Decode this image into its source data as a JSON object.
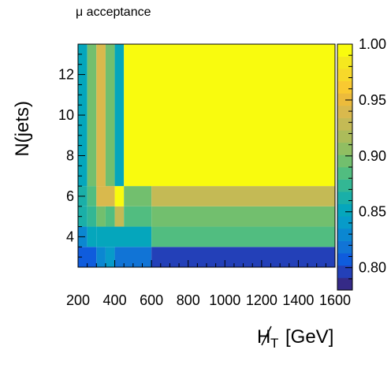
{
  "chart_data": {
    "type": "heatmap",
    "title": "μ acceptance",
    "ylabel": "N(jets)",
    "xlabel_main": "H",
    "xlabel_sub": "T",
    "xlabel_unit": "[GeV]",
    "xlim": [
      200,
      1600
    ],
    "ylim": [
      2.5,
      13.5
    ],
    "x_ticks": [
      200,
      400,
      600,
      800,
      1000,
      1200,
      1400,
      1600
    ],
    "y_ticks": [
      4,
      6,
      8,
      10,
      12
    ],
    "z_ticks": [
      "0.80",
      "0.85",
      "0.90",
      "0.95",
      "1.00"
    ],
    "zlim": [
      0.78,
      1.0
    ],
    "cells": [
      {
        "x0": 200,
        "x1": 300,
        "y0": 2.5,
        "y1": 3.5,
        "z": 0.804
      },
      {
        "x0": 300,
        "x1": 350,
        "y0": 2.5,
        "y1": 3.5,
        "z": 0.825
      },
      {
        "x0": 350,
        "x1": 400,
        "y0": 2.5,
        "y1": 3.5,
        "z": 0.838
      },
      {
        "x0": 400,
        "x1": 600,
        "y0": 2.5,
        "y1": 3.5,
        "z": 0.818
      },
      {
        "x0": 600,
        "x1": 1600,
        "y0": 2.5,
        "y1": 3.5,
        "z": 0.793
      },
      {
        "x0": 200,
        "x1": 250,
        "y0": 3.5,
        "y1": 4.5,
        "z": 0.825
      },
      {
        "x0": 250,
        "x1": 300,
        "y0": 3.5,
        "y1": 4.5,
        "z": 0.848
      },
      {
        "x0": 300,
        "x1": 600,
        "y0": 3.5,
        "y1": 4.5,
        "z": 0.852
      },
      {
        "x0": 600,
        "x1": 1600,
        "y0": 3.5,
        "y1": 4.5,
        "z": 0.885
      },
      {
        "x0": 200,
        "x1": 250,
        "y0": 4.5,
        "y1": 5.5,
        "z": 0.858
      },
      {
        "x0": 250,
        "x1": 300,
        "y0": 4.5,
        "y1": 5.5,
        "z": 0.875
      },
      {
        "x0": 300,
        "x1": 350,
        "y0": 4.5,
        "y1": 5.5,
        "z": 0.895
      },
      {
        "x0": 350,
        "x1": 400,
        "y0": 4.5,
        "y1": 5.5,
        "z": 0.88
      },
      {
        "x0": 400,
        "x1": 450,
        "y0": 4.5,
        "y1": 5.5,
        "z": 0.93
      },
      {
        "x0": 450,
        "x1": 600,
        "y0": 4.5,
        "y1": 5.5,
        "z": 0.885
      },
      {
        "x0": 600,
        "x1": 1600,
        "y0": 4.5,
        "y1": 5.5,
        "z": 0.9
      },
      {
        "x0": 200,
        "x1": 250,
        "y0": 5.5,
        "y1": 6.5,
        "z": 0.865
      },
      {
        "x0": 250,
        "x1": 300,
        "y0": 5.5,
        "y1": 6.5,
        "z": 0.88
      },
      {
        "x0": 300,
        "x1": 400,
        "y0": 5.5,
        "y1": 6.5,
        "z": 0.945
      },
      {
        "x0": 400,
        "x1": 450,
        "y0": 5.5,
        "y1": 6.5,
        "z": 1.0
      },
      {
        "x0": 450,
        "x1": 600,
        "y0": 5.5,
        "y1": 6.5,
        "z": 0.9
      },
      {
        "x0": 600,
        "x1": 1600,
        "y0": 5.5,
        "y1": 6.5,
        "z": 0.925
      },
      {
        "x0": 200,
        "x1": 250,
        "y0": 6.5,
        "y1": 13.5,
        "z": 0.855
      },
      {
        "x0": 250,
        "x1": 300,
        "y0": 6.5,
        "y1": 13.5,
        "z": 0.9
      },
      {
        "x0": 300,
        "x1": 350,
        "y0": 6.5,
        "y1": 13.5,
        "z": 0.945
      },
      {
        "x0": 350,
        "x1": 400,
        "y0": 6.5,
        "y1": 13.5,
        "z": 0.9
      },
      {
        "x0": 400,
        "x1": 450,
        "y0": 6.5,
        "y1": 13.5,
        "z": 0.855
      },
      {
        "x0": 450,
        "x1": 1600,
        "y0": 6.5,
        "y1": 13.5,
        "z": 1.0
      }
    ],
    "colormap": [
      "#352a87",
      "#2340b8",
      "#0f5cdd",
      "#1174d6",
      "#0b87d1",
      "#079bc9",
      "#05a6bc",
      "#1aafa8",
      "#33b794",
      "#51bd80",
      "#72bf6e",
      "#91be62",
      "#acbc5a",
      "#c4ba55",
      "#d9b94d",
      "#ecbb3c",
      "#f9c931",
      "#f7d92a",
      "#f5e81f",
      "#f9fb0e"
    ]
  }
}
